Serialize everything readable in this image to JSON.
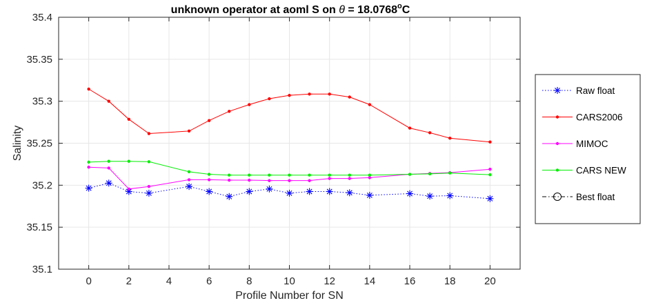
{
  "chart_data": {
    "type": "line",
    "title": {
      "prefix": "unknown operator  at aoml S on ",
      "theta": "θ",
      "eq": " = 18.0768",
      "degree": "o",
      "unit": "C"
    },
    "xlabel": "Profile Number for SN",
    "ylabel": "Salinity",
    "xlim": [
      -1.5,
      21.5
    ],
    "ylim": [
      35.1,
      35.4
    ],
    "xticks": [
      "0",
      "2",
      "4",
      "6",
      "8",
      "10",
      "12",
      "14",
      "16",
      "18",
      "20"
    ],
    "yticks": [
      "35.1",
      "35.15",
      "35.2",
      "35.25",
      "35.3",
      "35.35",
      "35.4"
    ],
    "grid": true,
    "legend_position": "outside-right",
    "series": [
      {
        "name": "Raw float",
        "color": "#0000ff",
        "line_style": "dotted",
        "marker": "asterisk",
        "x": [
          0,
          1,
          2,
          3,
          5,
          6,
          7,
          8,
          9,
          10,
          11,
          12,
          13,
          14,
          16,
          17,
          18,
          20
        ],
        "y": [
          35.1965,
          35.2025,
          35.1925,
          35.1905,
          35.1985,
          35.1925,
          35.1865,
          35.1925,
          35.1955,
          35.1905,
          35.1925,
          35.1925,
          35.191,
          35.188,
          35.19,
          35.187,
          35.1875,
          35.184
        ]
      },
      {
        "name": "CARS2006",
        "color": "#ff0000",
        "line_style": "solid",
        "marker": "dot",
        "x": [
          0,
          1,
          2,
          3,
          5,
          6,
          7,
          8,
          9,
          10,
          11,
          12,
          13,
          14,
          16,
          17,
          18,
          20
        ],
        "y": [
          35.3145,
          35.3,
          35.2785,
          35.2615,
          35.2645,
          35.277,
          35.288,
          35.296,
          35.303,
          35.307,
          35.3085,
          35.3085,
          35.305,
          35.296,
          35.268,
          35.2625,
          35.256,
          35.2515
        ]
      },
      {
        "name": "MIMOC",
        "color": "#ff00ff",
        "line_style": "solid",
        "marker": "dot",
        "x": [
          0,
          1,
          2,
          3,
          5,
          6,
          7,
          8,
          9,
          10,
          11,
          12,
          13,
          14,
          16,
          17,
          18,
          20
        ],
        "y": [
          35.2215,
          35.2205,
          35.1955,
          35.1985,
          35.2065,
          35.2065,
          35.206,
          35.206,
          35.2055,
          35.2055,
          35.2055,
          35.208,
          35.208,
          35.209,
          35.213,
          35.214,
          35.215,
          35.219
        ]
      },
      {
        "name": "CARS NEW",
        "color": "#00ee00",
        "line_style": "solid",
        "marker": "dot",
        "x": [
          0,
          1,
          2,
          3,
          5,
          6,
          7,
          8,
          9,
          10,
          11,
          12,
          13,
          14,
          16,
          17,
          18,
          20
        ],
        "y": [
          35.2275,
          35.2285,
          35.2285,
          35.228,
          35.216,
          35.213,
          35.212,
          35.212,
          35.212,
          35.212,
          35.212,
          35.212,
          35.212,
          35.212,
          35.213,
          35.2135,
          35.2145,
          35.2125
        ]
      },
      {
        "name": "Best float",
        "color": "#000000",
        "line_style": "dashdot",
        "marker": "circle",
        "x": [],
        "y": []
      }
    ]
  }
}
